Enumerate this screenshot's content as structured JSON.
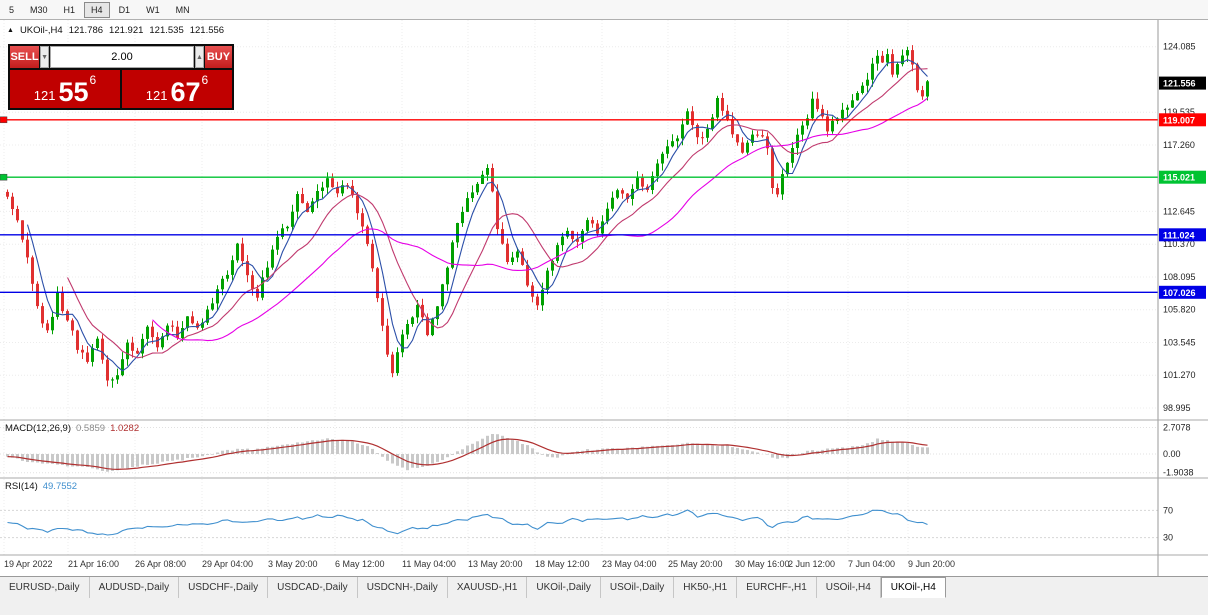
{
  "toolbar": {
    "timeframes": [
      "5",
      "M30",
      "H1",
      "H4",
      "D1",
      "W1",
      "MN"
    ],
    "active": "H4"
  },
  "chart_header": {
    "icon_glyph": "▲",
    "symbol": "UKOil-,H4",
    "open": "121.786",
    "high": "121.921",
    "low": "121.535",
    "close": "121.556"
  },
  "trade_panel": {
    "sell_label": "SELL",
    "buy_label": "BUY",
    "amount": "2.00",
    "spin_up": "▲",
    "spin_down": "▼",
    "sell_price": {
      "whole": "121",
      "pips": "55",
      "pip_fraction": "6"
    },
    "buy_price": {
      "whole": "121",
      "pips": "67",
      "pip_fraction": "6"
    }
  },
  "indicators": {
    "macd": {
      "name": "MACD(12,26,9)",
      "value_main": "0.5859",
      "value_signal": "1.0282"
    },
    "rsi": {
      "name": "RSI(14)",
      "value": "49.7552"
    }
  },
  "tabs": {
    "items": [
      "EURUSD-,Daily",
      "AUDUSD-,Daily",
      "USDCHF-,Daily",
      "USDCAD-,Daily",
      "USDCNH-,Daily",
      "XAUUSD-,H1",
      "UKOil-,Daily",
      "USOil-,Daily",
      "HK50-,H1",
      "EURCHF-,H1",
      "USOil-,H4",
      "UKOil-,H4"
    ],
    "active_index": 11
  },
  "chart_data": {
    "type": "candlestick",
    "symbol": "UKOil-",
    "timeframe": "H4",
    "main": {
      "ylim": [
        98.3,
        125.8
      ],
      "up_color": "#00a000",
      "down_color": "#e03030",
      "price_ticks": [
        [
          "124.085",
          124.085
        ],
        [
          "119.535",
          119.535
        ],
        [
          "117.260",
          117.26
        ],
        [
          "112.645",
          112.645
        ],
        [
          "110.370",
          110.37
        ],
        [
          "108.095",
          108.095
        ],
        [
          "105.820",
          105.82
        ],
        [
          "103.545",
          103.545
        ],
        [
          "101.270",
          101.27
        ],
        [
          "98.995",
          98.995
        ]
      ],
      "last_price": 121.556,
      "last_price_label": "121.556",
      "levels": [
        {
          "price": 119.007,
          "label": "119.007",
          "color": "#ff0000"
        },
        {
          "price": 115.021,
          "label": "115.021",
          "color": "#00c332"
        },
        {
          "price": 111.024,
          "label": "111.024",
          "color": "#0000e6"
        },
        {
          "price": 107.026,
          "label": "107.026",
          "color": "#0000e6"
        }
      ],
      "edge_markers": [
        {
          "price": 119.007,
          "color": "#ff0000"
        },
        {
          "price": 115.021,
          "color": "#00c332"
        }
      ],
      "bars": 185,
      "close_anchors": [
        [
          0,
          113.6
        ],
        [
          1,
          112.9
        ],
        [
          2,
          112.2
        ],
        [
          3,
          110.6
        ],
        [
          4,
          109.5
        ],
        [
          6,
          106.0
        ],
        [
          8,
          104.2
        ],
        [
          10,
          106.8
        ],
        [
          12,
          105.2
        ],
        [
          14,
          103.2
        ],
        [
          16,
          102.2
        ],
        [
          18,
          103.8
        ],
        [
          20,
          100.9
        ],
        [
          22,
          101.5
        ],
        [
          24,
          103.3
        ],
        [
          26,
          103.0
        ],
        [
          28,
          104.5
        ],
        [
          30,
          103.4
        ],
        [
          32,
          104.8
        ],
        [
          34,
          104.0
        ],
        [
          36,
          105.3
        ],
        [
          38,
          104.3
        ],
        [
          40,
          105.6
        ],
        [
          42,
          107.2
        ],
        [
          44,
          108.4
        ],
        [
          46,
          110.3
        ],
        [
          48,
          108.2
        ],
        [
          50,
          106.8
        ],
        [
          52,
          108.9
        ],
        [
          54,
          110.8
        ],
        [
          56,
          111.8
        ],
        [
          58,
          113.9
        ],
        [
          60,
          112.5
        ],
        [
          62,
          113.8
        ],
        [
          64,
          114.7
        ],
        [
          66,
          113.9
        ],
        [
          68,
          114.5
        ],
        [
          70,
          112.6
        ],
        [
          72,
          110.5
        ],
        [
          74,
          106.5
        ],
        [
          76,
          102.8
        ],
        [
          77,
          101.6
        ],
        [
          78,
          102.9
        ],
        [
          80,
          104.8
        ],
        [
          82,
          105.9
        ],
        [
          84,
          104.3
        ],
        [
          86,
          106.3
        ],
        [
          88,
          108.9
        ],
        [
          90,
          111.6
        ],
        [
          92,
          113.3
        ],
        [
          94,
          114.3
        ],
        [
          96,
          115.9
        ],
        [
          97,
          113.9
        ],
        [
          98,
          111.4
        ],
        [
          100,
          109.2
        ],
        [
          102,
          109.9
        ],
        [
          104,
          107.6
        ],
        [
          106,
          105.9
        ],
        [
          108,
          108.3
        ],
        [
          110,
          110.4
        ],
        [
          112,
          111.3
        ],
        [
          114,
          110.5
        ],
        [
          116,
          111.9
        ],
        [
          118,
          111.2
        ],
        [
          120,
          112.8
        ],
        [
          122,
          114.2
        ],
        [
          124,
          113.4
        ],
        [
          126,
          114.9
        ],
        [
          128,
          114.2
        ],
        [
          130,
          115.8
        ],
        [
          132,
          117.1
        ],
        [
          134,
          117.9
        ],
        [
          136,
          119.8
        ],
        [
          137,
          118.9
        ],
        [
          138,
          117.6
        ],
        [
          140,
          118.4
        ],
        [
          142,
          120.3
        ],
        [
          144,
          119.2
        ],
        [
          146,
          117.3
        ],
        [
          147,
          116.6
        ],
        [
          148,
          117.4
        ],
        [
          150,
          118.2
        ],
        [
          152,
          117.0
        ],
        [
          153,
          114.4
        ],
        [
          154,
          113.9
        ],
        [
          155,
          115.2
        ],
        [
          156,
          116.3
        ],
        [
          158,
          117.8
        ],
        [
          160,
          119.3
        ],
        [
          161,
          120.2
        ],
        [
          162,
          119.6
        ],
        [
          164,
          118.4
        ],
        [
          166,
          119.2
        ],
        [
          168,
          119.9
        ],
        [
          170,
          120.8
        ],
        [
          172,
          122.0
        ],
        [
          174,
          123.6
        ],
        [
          175,
          123.0
        ],
        [
          176,
          123.4
        ],
        [
          177,
          122.2
        ],
        [
          178,
          122.8
        ],
        [
          179,
          123.2
        ],
        [
          180,
          123.7
        ],
        [
          181,
          122.9
        ],
        [
          182,
          121.0
        ],
        [
          183,
          120.8
        ],
        [
          184,
          121.556
        ]
      ],
      "moving_averages": [
        {
          "period": 5,
          "color": "#2b4fa8"
        },
        {
          "period": 13,
          "color": "#c03a6e"
        },
        {
          "period": 30,
          "color": "#e600e6"
        }
      ]
    },
    "macd": {
      "ticks": [
        [
          "2.7078",
          2.7078
        ],
        [
          "0.00",
          0
        ],
        [
          "-1.9038",
          -1.9038
        ]
      ],
      "hist_color": "#c9c9c9",
      "signal_color": "#b03030",
      "anchors": [
        [
          0,
          -0.3
        ],
        [
          4,
          -0.8
        ],
        [
          10,
          -1.1
        ],
        [
          16,
          -1.4
        ],
        [
          20,
          -1.75
        ],
        [
          24,
          -1.4
        ],
        [
          30,
          -0.9
        ],
        [
          36,
          -0.5
        ],
        [
          40,
          -0.1
        ],
        [
          44,
          0.4
        ],
        [
          50,
          0.5
        ],
        [
          56,
          1.0
        ],
        [
          60,
          1.3
        ],
        [
          64,
          1.5
        ],
        [
          68,
          1.4
        ],
        [
          72,
          0.8
        ],
        [
          76,
          -0.6
        ],
        [
          78,
          -1.3
        ],
        [
          80,
          -1.6
        ],
        [
          84,
          -1.2
        ],
        [
          88,
          -0.4
        ],
        [
          92,
          0.8
        ],
        [
          96,
          1.9
        ],
        [
          98,
          2.1
        ],
        [
          100,
          1.6
        ],
        [
          104,
          0.9
        ],
        [
          106,
          0.2
        ],
        [
          108,
          -0.3
        ],
        [
          110,
          -0.4
        ],
        [
          112,
          0.0
        ],
        [
          116,
          0.4
        ],
        [
          120,
          0.5
        ],
        [
          124,
          0.6
        ],
        [
          128,
          0.7
        ],
        [
          132,
          0.9
        ],
        [
          136,
          1.1
        ],
        [
          140,
          0.9
        ],
        [
          144,
          0.9
        ],
        [
          148,
          0.4
        ],
        [
          152,
          -0.1
        ],
        [
          154,
          -0.5
        ],
        [
          156,
          -0.4
        ],
        [
          160,
          0.3
        ],
        [
          164,
          0.5
        ],
        [
          168,
          0.6
        ],
        [
          172,
          1.0
        ],
        [
          174,
          1.5
        ],
        [
          176,
          1.4
        ],
        [
          178,
          1.2
        ],
        [
          180,
          1.1
        ],
        [
          182,
          0.8
        ],
        [
          184,
          0.586
        ]
      ]
    },
    "rsi": {
      "levels": [
        70,
        30
      ],
      "color": "#3f8fce",
      "anchors": [
        [
          0,
          52
        ],
        [
          4,
          45
        ],
        [
          8,
          40
        ],
        [
          12,
          42
        ],
        [
          16,
          38
        ],
        [
          20,
          33
        ],
        [
          24,
          42
        ],
        [
          28,
          45
        ],
        [
          32,
          47
        ],
        [
          36,
          49
        ],
        [
          40,
          50
        ],
        [
          44,
          55
        ],
        [
          48,
          52
        ],
        [
          52,
          56
        ],
        [
          56,
          58
        ],
        [
          60,
          60
        ],
        [
          64,
          62
        ],
        [
          68,
          60
        ],
        [
          72,
          52
        ],
        [
          76,
          40
        ],
        [
          78,
          36
        ],
        [
          80,
          42
        ],
        [
          84,
          44
        ],
        [
          88,
          52
        ],
        [
          92,
          58
        ],
        [
          96,
          64
        ],
        [
          98,
          58
        ],
        [
          100,
          52
        ],
        [
          104,
          48
        ],
        [
          106,
          44
        ],
        [
          108,
          50
        ],
        [
          112,
          55
        ],
        [
          116,
          56
        ],
        [
          120,
          58
        ],
        [
          124,
          57
        ],
        [
          128,
          61
        ],
        [
          132,
          63
        ],
        [
          136,
          68
        ],
        [
          138,
          62
        ],
        [
          142,
          66
        ],
        [
          146,
          56
        ],
        [
          150,
          58
        ],
        [
          153,
          46
        ],
        [
          156,
          52
        ],
        [
          160,
          60
        ],
        [
          164,
          55
        ],
        [
          168,
          60
        ],
        [
          172,
          66
        ],
        [
          174,
          70
        ],
        [
          176,
          68
        ],
        [
          178,
          64
        ],
        [
          182,
          52
        ],
        [
          184,
          49.76
        ]
      ]
    },
    "x_labels": [
      [
        "19 Apr 2022",
        4
      ],
      [
        "21 Apr 16:00",
        68
      ],
      [
        "26 Apr 08:00",
        135
      ],
      [
        "29 Apr 04:00",
        202
      ],
      [
        "3 May 20:00",
        268
      ],
      [
        "6 May 12:00",
        335
      ],
      [
        "11 May 04:00",
        402
      ],
      [
        "13 May 20:00",
        468
      ],
      [
        "18 May 12:00",
        535
      ],
      [
        "23 May 04:00",
        602
      ],
      [
        "25 May 20:00",
        668
      ],
      [
        "30 May 16:00",
        735
      ],
      [
        "2 Jun 12:00",
        788
      ],
      [
        "7 Jun 04:00",
        848
      ],
      [
        "9 Jun 20:00",
        908
      ]
    ]
  }
}
